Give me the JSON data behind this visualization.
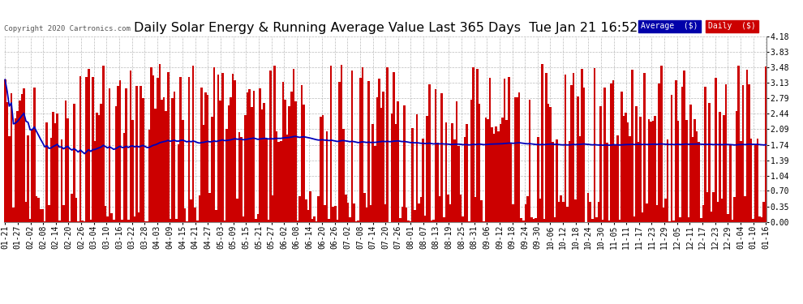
{
  "title": "Daily Solar Energy & Running Average Value Last 365 Days  Tue Jan 21 16:52",
  "copyright_text": "Copyright 2020 Cartronics.com",
  "background_color": "#ffffff",
  "plot_bg_color": "#ffffff",
  "grid_color": "#aaaaaa",
  "bar_color": "#cc0000",
  "avg_line_color": "#0000bb",
  "ylim": [
    0.0,
    4.18
  ],
  "yticks": [
    0.0,
    0.35,
    0.7,
    1.04,
    1.39,
    1.74,
    2.09,
    2.44,
    2.79,
    3.13,
    3.48,
    3.83,
    4.18
  ],
  "legend_avg_color": "#0000aa",
  "legend_daily_color": "#cc0000",
  "legend_text_color": "#ffffff",
  "title_fontsize": 11.5,
  "tick_fontsize": 7,
  "x_labels": [
    "01-21",
    "01-27",
    "02-02",
    "02-08",
    "02-14",
    "02-20",
    "02-26",
    "03-04",
    "03-10",
    "03-16",
    "03-22",
    "03-28",
    "04-03",
    "04-09",
    "04-15",
    "04-21",
    "04-27",
    "05-03",
    "05-09",
    "05-15",
    "05-21",
    "05-27",
    "06-02",
    "06-08",
    "06-14",
    "06-20",
    "06-26",
    "07-02",
    "07-08",
    "07-14",
    "07-20",
    "07-26",
    "08-01",
    "08-07",
    "08-13",
    "08-19",
    "08-25",
    "08-31",
    "09-06",
    "09-12",
    "09-18",
    "09-24",
    "09-30",
    "10-06",
    "10-12",
    "10-18",
    "10-24",
    "10-30",
    "11-05",
    "11-11",
    "11-17",
    "11-23",
    "11-29",
    "12-05",
    "12-11",
    "12-17",
    "12-23",
    "12-29",
    "01-04",
    "01-10",
    "01-16"
  ]
}
